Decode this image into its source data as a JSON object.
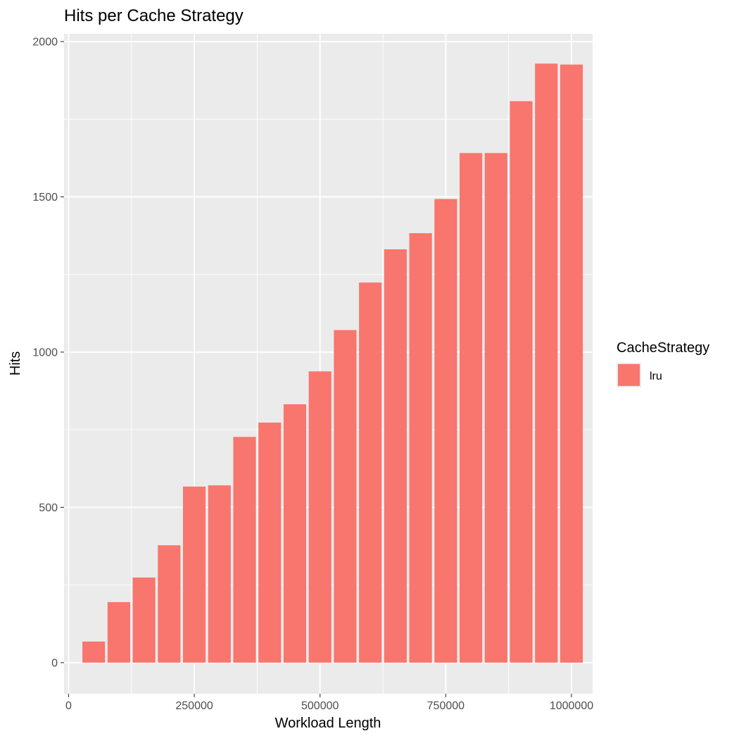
{
  "chart_data": {
    "type": "bar",
    "title": "Hits per Cache Strategy",
    "xlabel": "Workload Length",
    "ylabel": "Hits",
    "x": [
      50000,
      100000,
      150000,
      200000,
      250000,
      300000,
      350000,
      400000,
      450000,
      500000,
      550000,
      600000,
      650000,
      700000,
      750000,
      800000,
      850000,
      900000,
      950000,
      1000000
    ],
    "series": [
      {
        "name": "lru",
        "color": "#F8766D",
        "values": [
          68,
          195,
          274,
          378,
          567,
          571,
          727,
          773,
          832,
          938,
          1071,
          1224,
          1331,
          1383,
          1493,
          1641,
          1641,
          1808,
          1929,
          1926
        ]
      }
    ],
    "xlim": [
      -9000,
      1042000
    ],
    "ylim": [
      -100,
      2025
    ],
    "x_ticks": [
      0,
      250000,
      500000,
      750000,
      1000000
    ],
    "x_tick_labels": [
      "0",
      "250000",
      "500000",
      "750000",
      "1000000"
    ],
    "y_ticks": [
      0,
      500,
      1000,
      1500,
      2000
    ],
    "y_tick_labels": [
      "0",
      "500",
      "1000",
      "1500",
      "2000"
    ],
    "grid": true,
    "legend": {
      "title": "CacheStrategy",
      "position": "right",
      "entries": [
        "lru"
      ]
    },
    "panel_background": "#EBEBEB",
    "grid_color": "#FFFFFF",
    "text_color": "#4D4D4D"
  }
}
